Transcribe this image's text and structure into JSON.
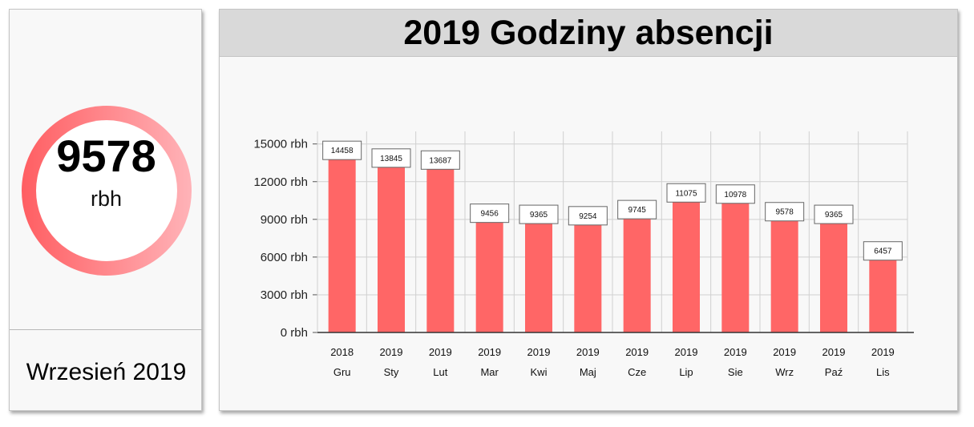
{
  "kpi": {
    "value": "9578",
    "unit": "rbh",
    "period": "Wrzesień 2019"
  },
  "colors": {
    "bar": "#ff6666",
    "ring_start": "#ff5e62",
    "ring_end": "#ffb3b8",
    "grid": "#d0d0d0",
    "label_box_border": "#666666"
  },
  "chart_data": {
    "type": "bar",
    "title": "2019 Godziny absencji",
    "categories": [
      "Gru",
      "Sty",
      "Lut",
      "Mar",
      "Kwi",
      "Maj",
      "Cze",
      "Lip",
      "Sie",
      "Wrz",
      "Paź",
      "Lis"
    ],
    "category_years": [
      "2018",
      "2019",
      "2019",
      "2019",
      "2019",
      "2019",
      "2019",
      "2019",
      "2019",
      "2019",
      "2019",
      "2019"
    ],
    "values": [
      14458,
      13845,
      13687,
      9456,
      9365,
      9254,
      9745,
      11075,
      10978,
      9578,
      9365,
      6457
    ],
    "ylim": [
      0,
      16000
    ],
    "yticks": [
      0,
      3000,
      6000,
      9000,
      12000,
      15000
    ],
    "ytick_labels": [
      "0 rbh",
      "3000 rbh",
      "6000 rbh",
      "9000 rbh",
      "12000 rbh",
      "15000 rbh"
    ],
    "xlabel": "",
    "ylabel": "",
    "grid": true,
    "data_labels": true
  }
}
